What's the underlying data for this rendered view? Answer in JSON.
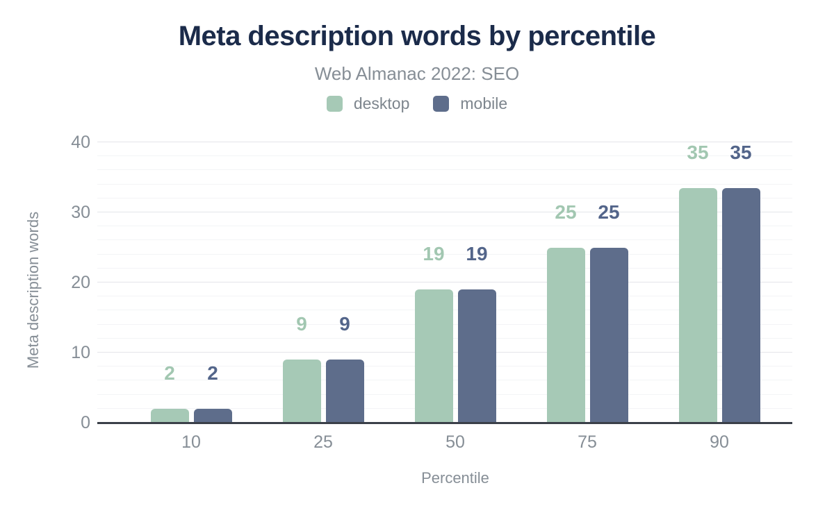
{
  "chart_data": {
    "type": "bar",
    "title": "Meta description words by percentile",
    "subtitle": "Web Almanac 2022: SEO",
    "categories": [
      "10",
      "25",
      "50",
      "75",
      "90"
    ],
    "series": [
      {
        "name": "desktop",
        "values": [
          2,
          9,
          19,
          25,
          35
        ],
        "color": "#a6c9b6",
        "label_color": "#a2c7b1"
      },
      {
        "name": "mobile",
        "values": [
          2,
          9,
          19,
          25,
          35
        ],
        "color": "#5e6d8b",
        "label_color": "#53658a"
      }
    ],
    "xlabel": "Percentile",
    "ylabel": "Meta description words",
    "ylim": [
      0,
      40
    ],
    "yticks": [
      0,
      10,
      20,
      30,
      40
    ],
    "minor_gridline_step": 2,
    "grid": true,
    "legend_position": "top",
    "title_color": "#1b2b4a",
    "subtitle_color": "#868e96",
    "tick_label_color": "#868e96",
    "axis_line_color": "#3b4049",
    "major_grid_color": "#e4e5e9",
    "minor_grid_color": "#f3f4f6",
    "background_color": "#ffffff"
  }
}
